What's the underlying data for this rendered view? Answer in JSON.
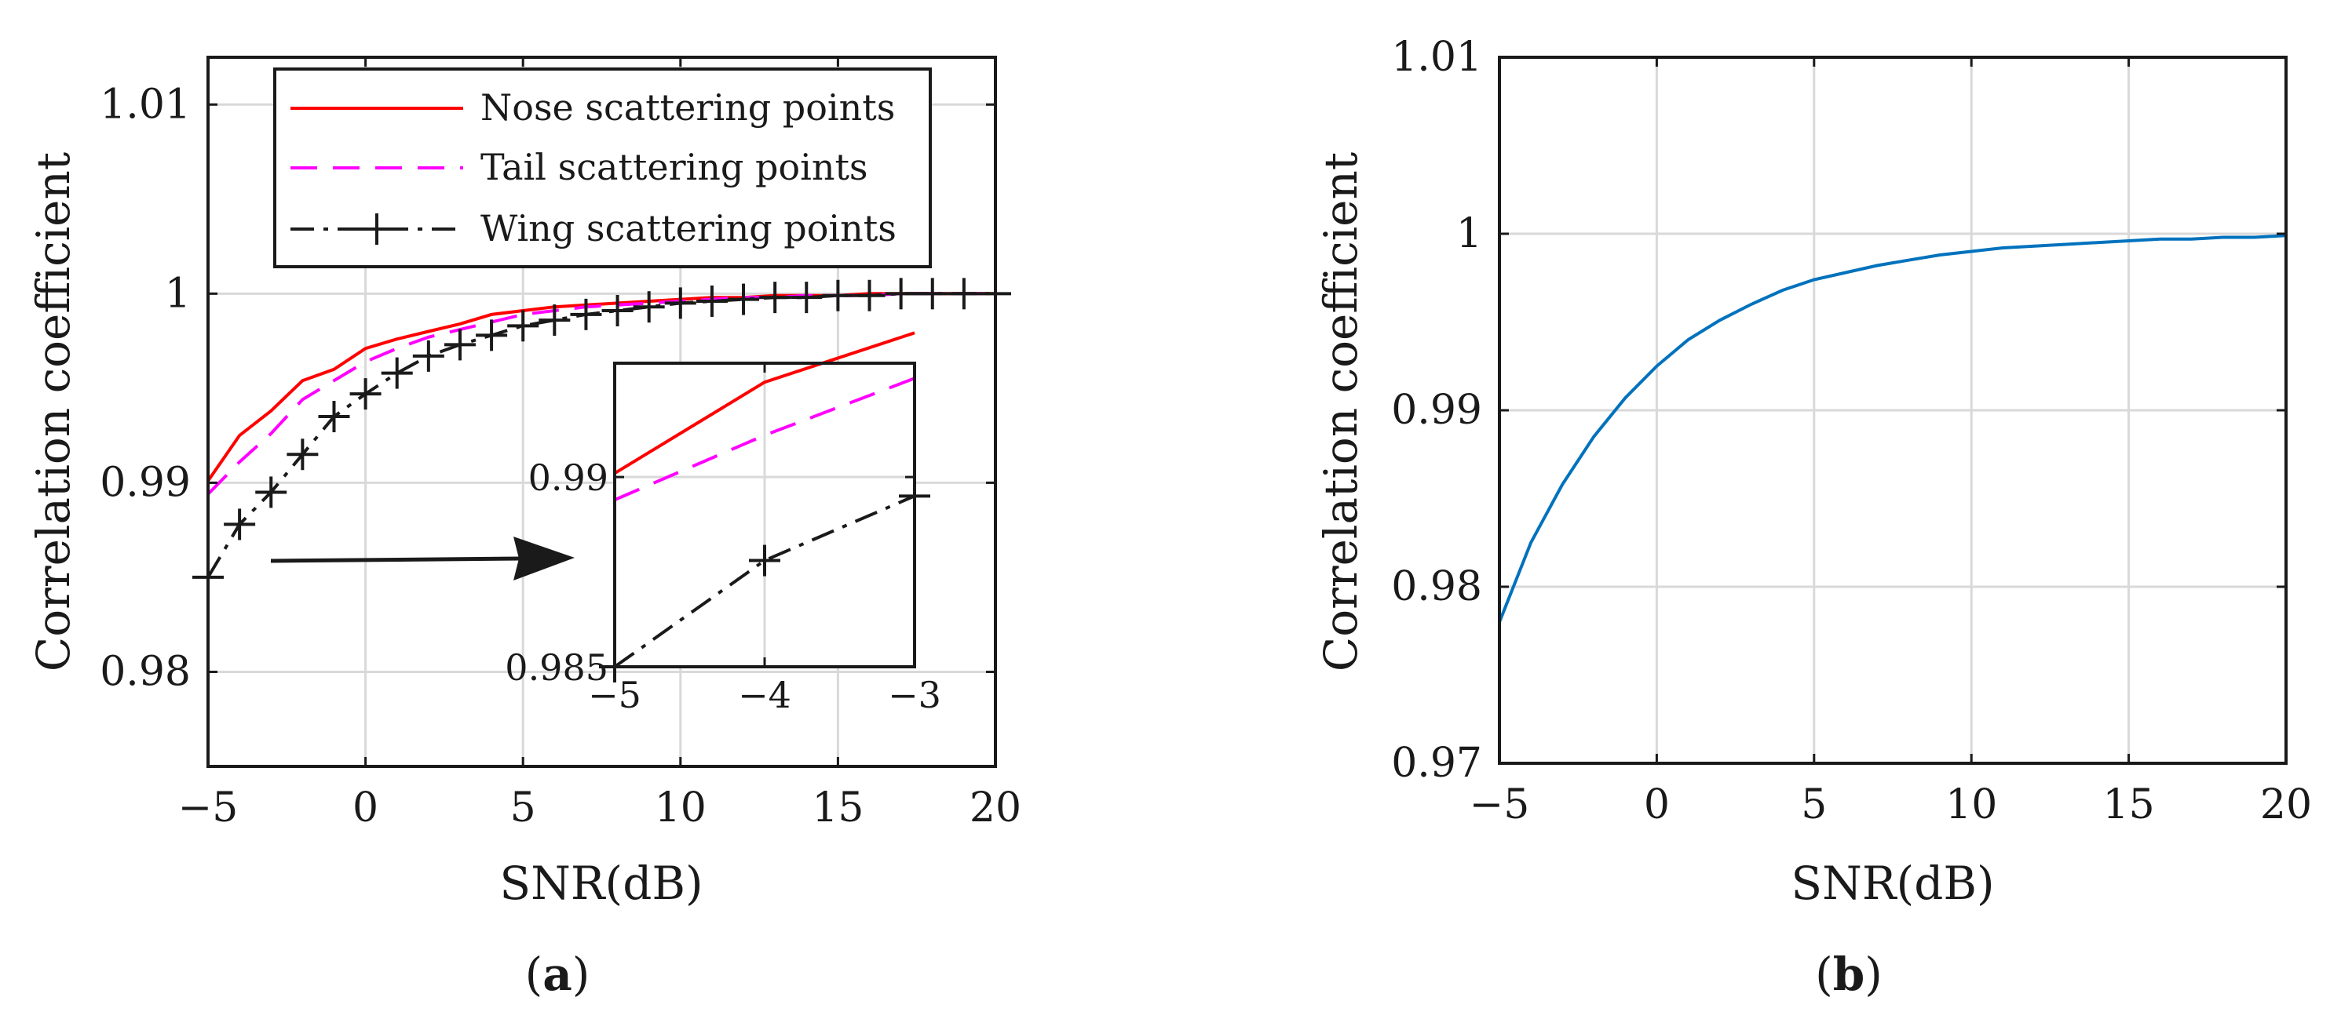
{
  "chart_data": [
    {
      "id": "a",
      "type": "line",
      "caption": "a",
      "xlabel": "SNR(dB)",
      "ylabel": "Correlation coefficient",
      "xlim": [
        -5,
        20
      ],
      "ylim": [
        0.975,
        1.0125
      ],
      "xticks": [
        -5,
        0,
        5,
        10,
        15,
        20
      ],
      "yticks": [
        0.98,
        0.99,
        1,
        1.01
      ],
      "xtick_labels": [
        "−5",
        "0",
        "5",
        "10",
        "15",
        "20"
      ],
      "ytick_labels": [
        "0.98",
        "0.99",
        "1",
        "1.01"
      ],
      "grid": true,
      "legend_position": "top-right",
      "x": [
        -5,
        -4,
        -3,
        -2,
        -1,
        0,
        1,
        2,
        3,
        4,
        5,
        6,
        7,
        8,
        9,
        10,
        11,
        12,
        13,
        14,
        15,
        16,
        17,
        18,
        19,
        20
      ],
      "series": [
        {
          "name": "Nose scattering points",
          "color": "#ff0000",
          "style": "solid",
          "values": [
            0.9901,
            0.9925,
            0.9938,
            0.9954,
            0.996,
            0.9971,
            0.9976,
            0.998,
            0.9984,
            0.9989,
            0.9991,
            0.9993,
            0.9994,
            0.9995,
            0.9996,
            0.9997,
            0.9998,
            0.9998,
            0.9999,
            0.9999,
            0.9999,
            1.0,
            1.0,
            1.0,
            1.0,
            1.0
          ]
        },
        {
          "name": "Tail scattering points",
          "color": "#ff00ff",
          "style": "dashed",
          "values": [
            0.9894,
            0.9911,
            0.9926,
            0.9944,
            0.9954,
            0.9964,
            0.9971,
            0.9977,
            0.9981,
            0.9985,
            0.9989,
            0.9991,
            0.9993,
            0.9994,
            0.9995,
            0.9996,
            0.9997,
            0.9998,
            0.9998,
            0.9999,
            0.9999,
            0.9999,
            1.0,
            1.0,
            1.0,
            1.0
          ]
        },
        {
          "name": "Wing scattering points",
          "color": "#1a1a1a",
          "style": "dashdot",
          "marker": "+",
          "values": [
            0.985,
            0.9878,
            0.9895,
            0.9915,
            0.9935,
            0.9947,
            0.9958,
            0.9967,
            0.9973,
            0.9978,
            0.9983,
            0.9986,
            0.9989,
            0.9991,
            0.9993,
            0.9995,
            0.9996,
            0.9997,
            0.9998,
            0.9998,
            0.9999,
            0.9999,
            1.0,
            1.0,
            1.0,
            1.0
          ]
        }
      ],
      "inset": {
        "xlim": [
          -5,
          -3
        ],
        "ylim": [
          0.985,
          0.993
        ],
        "xticks": [
          -5,
          -4,
          -3
        ],
        "xtick_labels": [
          "−5",
          "−4",
          "−3"
        ],
        "yticks": [
          0.985,
          0.99
        ],
        "ytick_labels": [
          "0.985",
          "0.99"
        ],
        "grid": true
      }
    },
    {
      "id": "b",
      "type": "line",
      "caption": "b",
      "xlabel": "SNR(dB)",
      "ylabel": "Correlation coefficient",
      "xlim": [
        -5,
        20
      ],
      "ylim": [
        0.97,
        1.01
      ],
      "xticks": [
        -5,
        0,
        5,
        10,
        15,
        20
      ],
      "yticks": [
        0.97,
        0.98,
        0.99,
        1,
        1.01
      ],
      "xtick_labels": [
        "−5",
        "0",
        "5",
        "10",
        "15",
        "20"
      ],
      "ytick_labels": [
        "0.97",
        "0.98",
        "0.99",
        "1",
        "1.01"
      ],
      "grid": true,
      "x": [
        -5,
        -4,
        -3,
        -2,
        -1,
        0,
        1,
        2,
        3,
        4,
        5,
        6,
        7,
        8,
        9,
        10,
        11,
        12,
        13,
        14,
        15,
        16,
        17,
        18,
        19,
        20
      ],
      "series": [
        {
          "name": "Correlation coefficient",
          "color": "#0072bd",
          "style": "solid",
          "values": [
            0.978,
            0.9825,
            0.9858,
            0.9885,
            0.9907,
            0.9925,
            0.994,
            0.9951,
            0.996,
            0.9968,
            0.9974,
            0.9978,
            0.9982,
            0.9985,
            0.9988,
            0.999,
            0.9992,
            0.9993,
            0.9994,
            0.9995,
            0.9996,
            0.9997,
            0.9997,
            0.9998,
            0.9998,
            0.9999
          ]
        }
      ]
    }
  ]
}
